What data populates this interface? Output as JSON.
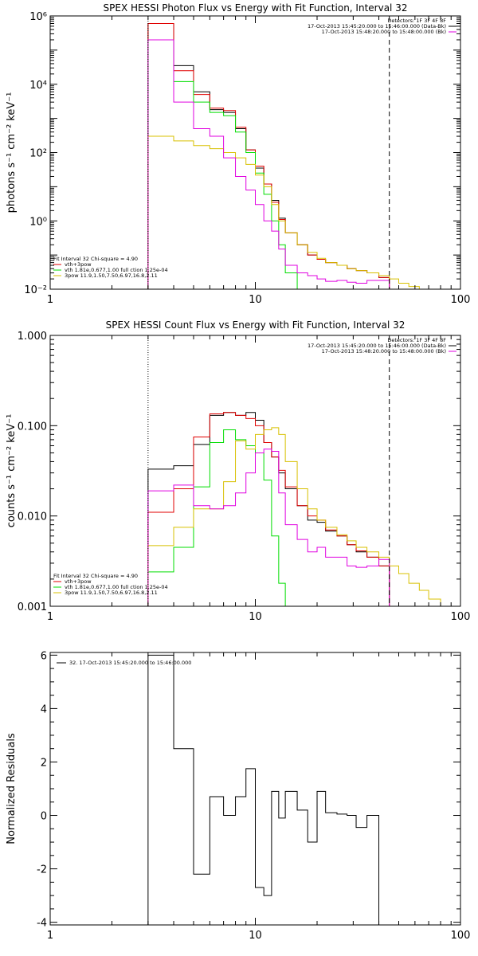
{
  "colors": {
    "black": "#000000",
    "red": "#e00000",
    "green": "#00dd00",
    "magenta": "#e000e0",
    "yellow": "#d8c000"
  },
  "chart_data": [
    {
      "type": "line",
      "title": "SPEX HESSI Photon Flux vs Energy with Fit Function, Interval 32",
      "ylabel": "photons s⁻¹ cm⁻² keV⁻¹",
      "xscale": "log",
      "yscale": "log",
      "xlim": [
        1,
        100
      ],
      "ylim": [
        0.01,
        1000000
      ],
      "xticks": [
        {
          "v": 1,
          "label": "1"
        },
        {
          "v": 10,
          "label": "10"
        },
        {
          "v": 100,
          "label": "100"
        }
      ],
      "yticks": [
        {
          "v": 0.01,
          "label": "10⁻²"
        },
        {
          "v": 1,
          "label": "10⁰"
        },
        {
          "v": 100,
          "label": "10²"
        },
        {
          "v": 10000,
          "label": "10⁴"
        },
        {
          "v": 1000000,
          "label": "10⁶"
        }
      ],
      "dotted_x": 3,
      "dashed_x": 45,
      "legend_top": [
        "Detectors: 1F 3F 4F 8F",
        "17-Oct-2013 15:45:20.000 to 15:46:00.000 (Data-Bk)",
        "17-Oct-2013 15:48:20.000 to 15:48:00.000 (Bk)"
      ],
      "legend_top_colors": [
        "",
        "#000000",
        "#e000e0"
      ],
      "legend_bottom": [
        "Fit Interval 32   Chi-square = 4.90",
        "vth+3pow",
        "vth 1.81e,0.677,1.00  full ction 1.25e-04",
        "3pow 11.9,1.50,7.50,6.97,16.8,2.11"
      ],
      "legend_bottom_colors": [
        "",
        "#e00000",
        "#00dd00",
        "#d8c000"
      ],
      "edges": [
        3,
        4,
        5,
        6,
        7,
        8,
        9,
        10,
        11,
        12,
        13,
        14,
        16,
        18,
        20,
        22,
        25,
        28,
        31,
        35,
        40,
        45,
        50,
        56,
        63,
        70
      ],
      "series": [
        {
          "name": "data",
          "color": "#000000",
          "values": [
            600000,
            35000,
            6000,
            1800,
            1500,
            500,
            120,
            35,
            12,
            4,
            1.2,
            0.45,
            0.2,
            0.1,
            0.075,
            0.06,
            0.05,
            0.04,
            0.035,
            0.03,
            0.022
          ]
        },
        {
          "name": "vth+3pow",
          "color": "#e00000",
          "values": [
            600000,
            25000,
            5000,
            2000,
            1700,
            550,
            120,
            40,
            12,
            3.5,
            1.1,
            0.45,
            0.2,
            0.1,
            0.075,
            0.06,
            0.05,
            0.04,
            0.035,
            0.03,
            0.022
          ]
        },
        {
          "name": "vth",
          "color": "#00dd00",
          "values": [
            200000,
            12000,
            3000,
            1500,
            1200,
            400,
            100,
            25,
            6,
            1,
            0.2,
            0.03,
            0.01
          ]
        },
        {
          "name": "3pow",
          "color": "#d8c000",
          "values": [
            300,
            220,
            160,
            130,
            100,
            70,
            45,
            22,
            10,
            3,
            1,
            0.45,
            0.2,
            0.12,
            0.08,
            0.06,
            0.05,
            0.04,
            0.035,
            0.03,
            0.025,
            0.02,
            0.015,
            0.012,
            0.01
          ]
        },
        {
          "name": "background",
          "color": "#e000e0",
          "values": [
            200000,
            3000,
            500,
            300,
            70,
            20,
            8,
            3,
            1,
            0.5,
            0.15,
            0.05,
            0.03,
            0.025,
            0.02,
            0.017,
            0.018,
            0.016,
            0.015,
            0.018,
            0.018
          ]
        }
      ]
    },
    {
      "type": "line",
      "title": "SPEX HESSI Count Flux vs Energy with Fit Function, Interval 32",
      "ylabel": "counts s⁻¹ cm⁻² keV⁻¹",
      "xscale": "log",
      "yscale": "log",
      "xlim": [
        1,
        100
      ],
      "ylim": [
        0.001,
        1
      ],
      "xticks": [
        {
          "v": 1,
          "label": "1"
        },
        {
          "v": 10,
          "label": "10"
        },
        {
          "v": 100,
          "label": "100"
        }
      ],
      "yticks": [
        {
          "v": 0.001,
          "label": "0.001"
        },
        {
          "v": 0.01,
          "label": "0.010"
        },
        {
          "v": 0.1,
          "label": "0.100"
        },
        {
          "v": 1,
          "label": "1.000"
        }
      ],
      "dotted_x": 3,
      "dashed_x": 45,
      "legend_top": [
        "Detectors: 1F 3F 4F 8F",
        "17-Oct-2013 15:45:20.000 to 15:46:00.000 (Data-Bk)",
        "17-Oct-2013 15:48:20.000 to 15:48:00.000 (Bk)"
      ],
      "legend_top_colors": [
        "",
        "#000000",
        "#e000e0"
      ],
      "legend_bottom": [
        "Fit Interval 32   Chi-square = 4.90",
        "vth+3pow",
        "vth 1.81e,0.677,1.00  full ction 1.25e-04",
        "3pow 11.9,1.50,7.50,6.97,16.8,2.11"
      ],
      "legend_bottom_colors": [
        "",
        "#e00000",
        "#00dd00",
        "#d8c000"
      ],
      "edges": [
        3,
        4,
        5,
        6,
        7,
        8,
        9,
        10,
        11,
        12,
        13,
        14,
        16,
        18,
        20,
        22,
        25,
        28,
        31,
        35,
        40,
        45,
        50,
        56,
        63,
        70,
        80,
        90
      ],
      "series": [
        {
          "name": "data",
          "color": "#000000",
          "values": [
            0.033,
            0.036,
            0.062,
            0.13,
            0.14,
            0.13,
            0.14,
            0.115,
            0.065,
            0.045,
            0.03,
            0.02,
            0.013,
            0.009,
            0.0085,
            0.0068,
            0.006,
            0.0048,
            0.004,
            0.0035,
            0.0028
          ]
        },
        {
          "name": "vth+3pow",
          "color": "#e00000",
          "values": [
            0.011,
            0.02,
            0.075,
            0.135,
            0.14,
            0.13,
            0.12,
            0.1,
            0.065,
            0.045,
            0.032,
            0.021,
            0.013,
            0.01,
            0.009,
            0.007,
            0.006,
            0.0048,
            0.0041,
            0.0035,
            0.0028
          ]
        },
        {
          "name": "vth",
          "color": "#00dd00",
          "values": [
            0.0024,
            0.0045,
            0.021,
            0.065,
            0.09,
            0.07,
            0.06,
            0.05,
            0.025,
            0.006,
            0.0018,
            0.0009
          ]
        },
        {
          "name": "3pow",
          "color": "#d8c000",
          "values": [
            0.0047,
            0.0075,
            0.012,
            0.012,
            0.024,
            0.068,
            0.055,
            0.08,
            0.09,
            0.095,
            0.08,
            0.04,
            0.02,
            0.012,
            0.009,
            0.0075,
            0.0062,
            0.0053,
            0.0045,
            0.004,
            0.0035,
            0.0028,
            0.0023,
            0.0018,
            0.0015,
            0.0012,
            0.001
          ]
        },
        {
          "name": "background",
          "color": "#e000e0",
          "values": [
            0.019,
            0.022,
            0.013,
            0.012,
            0.013,
            0.018,
            0.03,
            0.05,
            0.055,
            0.052,
            0.018,
            0.008,
            0.0055,
            0.004,
            0.0045,
            0.0035,
            0.0035,
            0.0028,
            0.0027,
            0.0028,
            0.0033
          ]
        }
      ]
    },
    {
      "type": "line",
      "title": "",
      "ylabel": "Normalized Residuals",
      "xscale": "log",
      "yscale": "linear",
      "xlim": [
        1,
        100
      ],
      "ylim": [
        -4.1,
        6.1
      ],
      "xticks": [
        {
          "v": 1,
          "label": "1"
        },
        {
          "v": 10,
          "label": "10"
        },
        {
          "v": 100,
          "label": "100"
        }
      ],
      "yticks": [
        {
          "v": -4,
          "label": "-4"
        },
        {
          "v": -2,
          "label": "-2"
        },
        {
          "v": 0,
          "label": "0"
        },
        {
          "v": 2,
          "label": "2"
        },
        {
          "v": 4,
          "label": "4"
        },
        {
          "v": 6,
          "label": "6"
        }
      ],
      "legend_top": [
        "32. 17-Oct-2013 15:45:20.000 to 15:46:00.000"
      ],
      "legend_top_colors": [
        "#000000"
      ],
      "edges": [
        3,
        4,
        5,
        6,
        7,
        8,
        9,
        10,
        11,
        12,
        13,
        14,
        16,
        18,
        20,
        22,
        25,
        28,
        31,
        35,
        40,
        45
      ],
      "series": [
        {
          "name": "residuals",
          "color": "#000000",
          "values": [
            6,
            2.5,
            -2.2,
            0.7,
            0,
            0.7,
            1.75,
            -2.7,
            -3,
            0.9,
            -0.1,
            0.9,
            0.2,
            -1,
            0.9,
            0.1,
            0.05,
            0,
            -0.45,
            0
          ]
        }
      ]
    }
  ]
}
